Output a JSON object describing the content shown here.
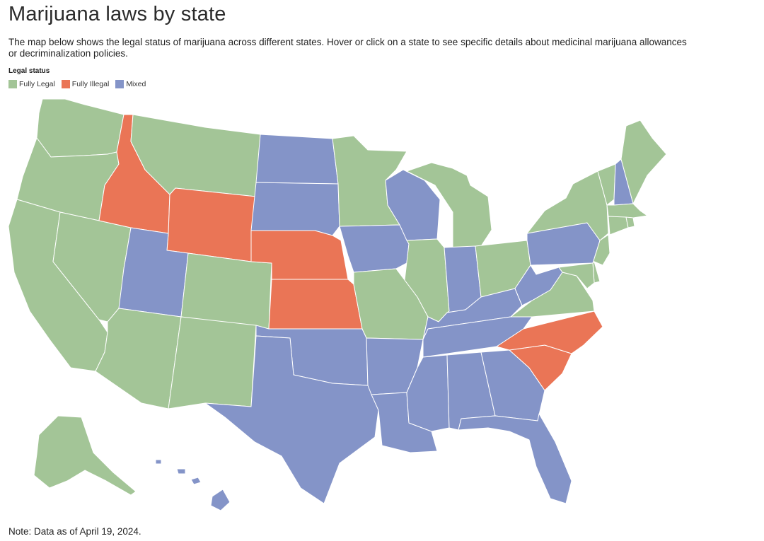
{
  "title": "Marijuana laws by state",
  "subtitle": "The map below shows the legal status of marijuana across different states. Hover or click on a state to see specific details about medicinal marijuana allowances or decriminalization policies.",
  "legend": {
    "title": "Legal status",
    "items": [
      {
        "key": "legal",
        "label": "Fully Legal",
        "color": "#a3c597"
      },
      {
        "key": "illegal",
        "label": "Fully Illegal",
        "color": "#ea7556"
      },
      {
        "key": "mixed",
        "label": "Mixed",
        "color": "#8494c8"
      }
    ]
  },
  "map": {
    "states": [
      {
        "id": "WA",
        "status": "legal"
      },
      {
        "id": "OR",
        "status": "legal"
      },
      {
        "id": "CA",
        "status": "legal"
      },
      {
        "id": "NV",
        "status": "legal"
      },
      {
        "id": "ID",
        "status": "illegal"
      },
      {
        "id": "MT",
        "status": "legal"
      },
      {
        "id": "WY",
        "status": "illegal"
      },
      {
        "id": "UT",
        "status": "mixed"
      },
      {
        "id": "AZ",
        "status": "legal"
      },
      {
        "id": "CO",
        "status": "legal"
      },
      {
        "id": "NM",
        "status": "legal"
      },
      {
        "id": "ND",
        "status": "mixed"
      },
      {
        "id": "SD",
        "status": "mixed"
      },
      {
        "id": "NE",
        "status": "illegal"
      },
      {
        "id": "KS",
        "status": "illegal"
      },
      {
        "id": "OK",
        "status": "mixed"
      },
      {
        "id": "TX",
        "status": "mixed"
      },
      {
        "id": "MN",
        "status": "legal"
      },
      {
        "id": "IA",
        "status": "mixed"
      },
      {
        "id": "MO",
        "status": "legal"
      },
      {
        "id": "AR",
        "status": "mixed"
      },
      {
        "id": "LA",
        "status": "mixed"
      },
      {
        "id": "WI",
        "status": "mixed"
      },
      {
        "id": "IL",
        "status": "legal"
      },
      {
        "id": "MI",
        "status": "legal"
      },
      {
        "id": "IN",
        "status": "mixed"
      },
      {
        "id": "OH",
        "status": "legal"
      },
      {
        "id": "KY",
        "status": "mixed"
      },
      {
        "id": "TN",
        "status": "mixed"
      },
      {
        "id": "MS",
        "status": "mixed"
      },
      {
        "id": "AL",
        "status": "mixed"
      },
      {
        "id": "GA",
        "status": "mixed"
      },
      {
        "id": "FL",
        "status": "mixed"
      },
      {
        "id": "SC",
        "status": "illegal"
      },
      {
        "id": "NC",
        "status": "illegal"
      },
      {
        "id": "VA",
        "status": "legal"
      },
      {
        "id": "WV",
        "status": "mixed"
      },
      {
        "id": "PA",
        "status": "mixed"
      },
      {
        "id": "NY",
        "status": "legal"
      },
      {
        "id": "VT",
        "status": "legal"
      },
      {
        "id": "NH",
        "status": "mixed"
      },
      {
        "id": "ME",
        "status": "legal"
      },
      {
        "id": "MA",
        "status": "legal"
      },
      {
        "id": "CT",
        "status": "legal"
      },
      {
        "id": "RI",
        "status": "legal"
      },
      {
        "id": "NJ",
        "status": "legal"
      },
      {
        "id": "DE",
        "status": "legal"
      },
      {
        "id": "MD",
        "status": "legal"
      },
      {
        "id": "AK",
        "status": "legal"
      },
      {
        "id": "HI",
        "status": "mixed"
      }
    ]
  },
  "note": "Note: Data as of April 19, 2024."
}
